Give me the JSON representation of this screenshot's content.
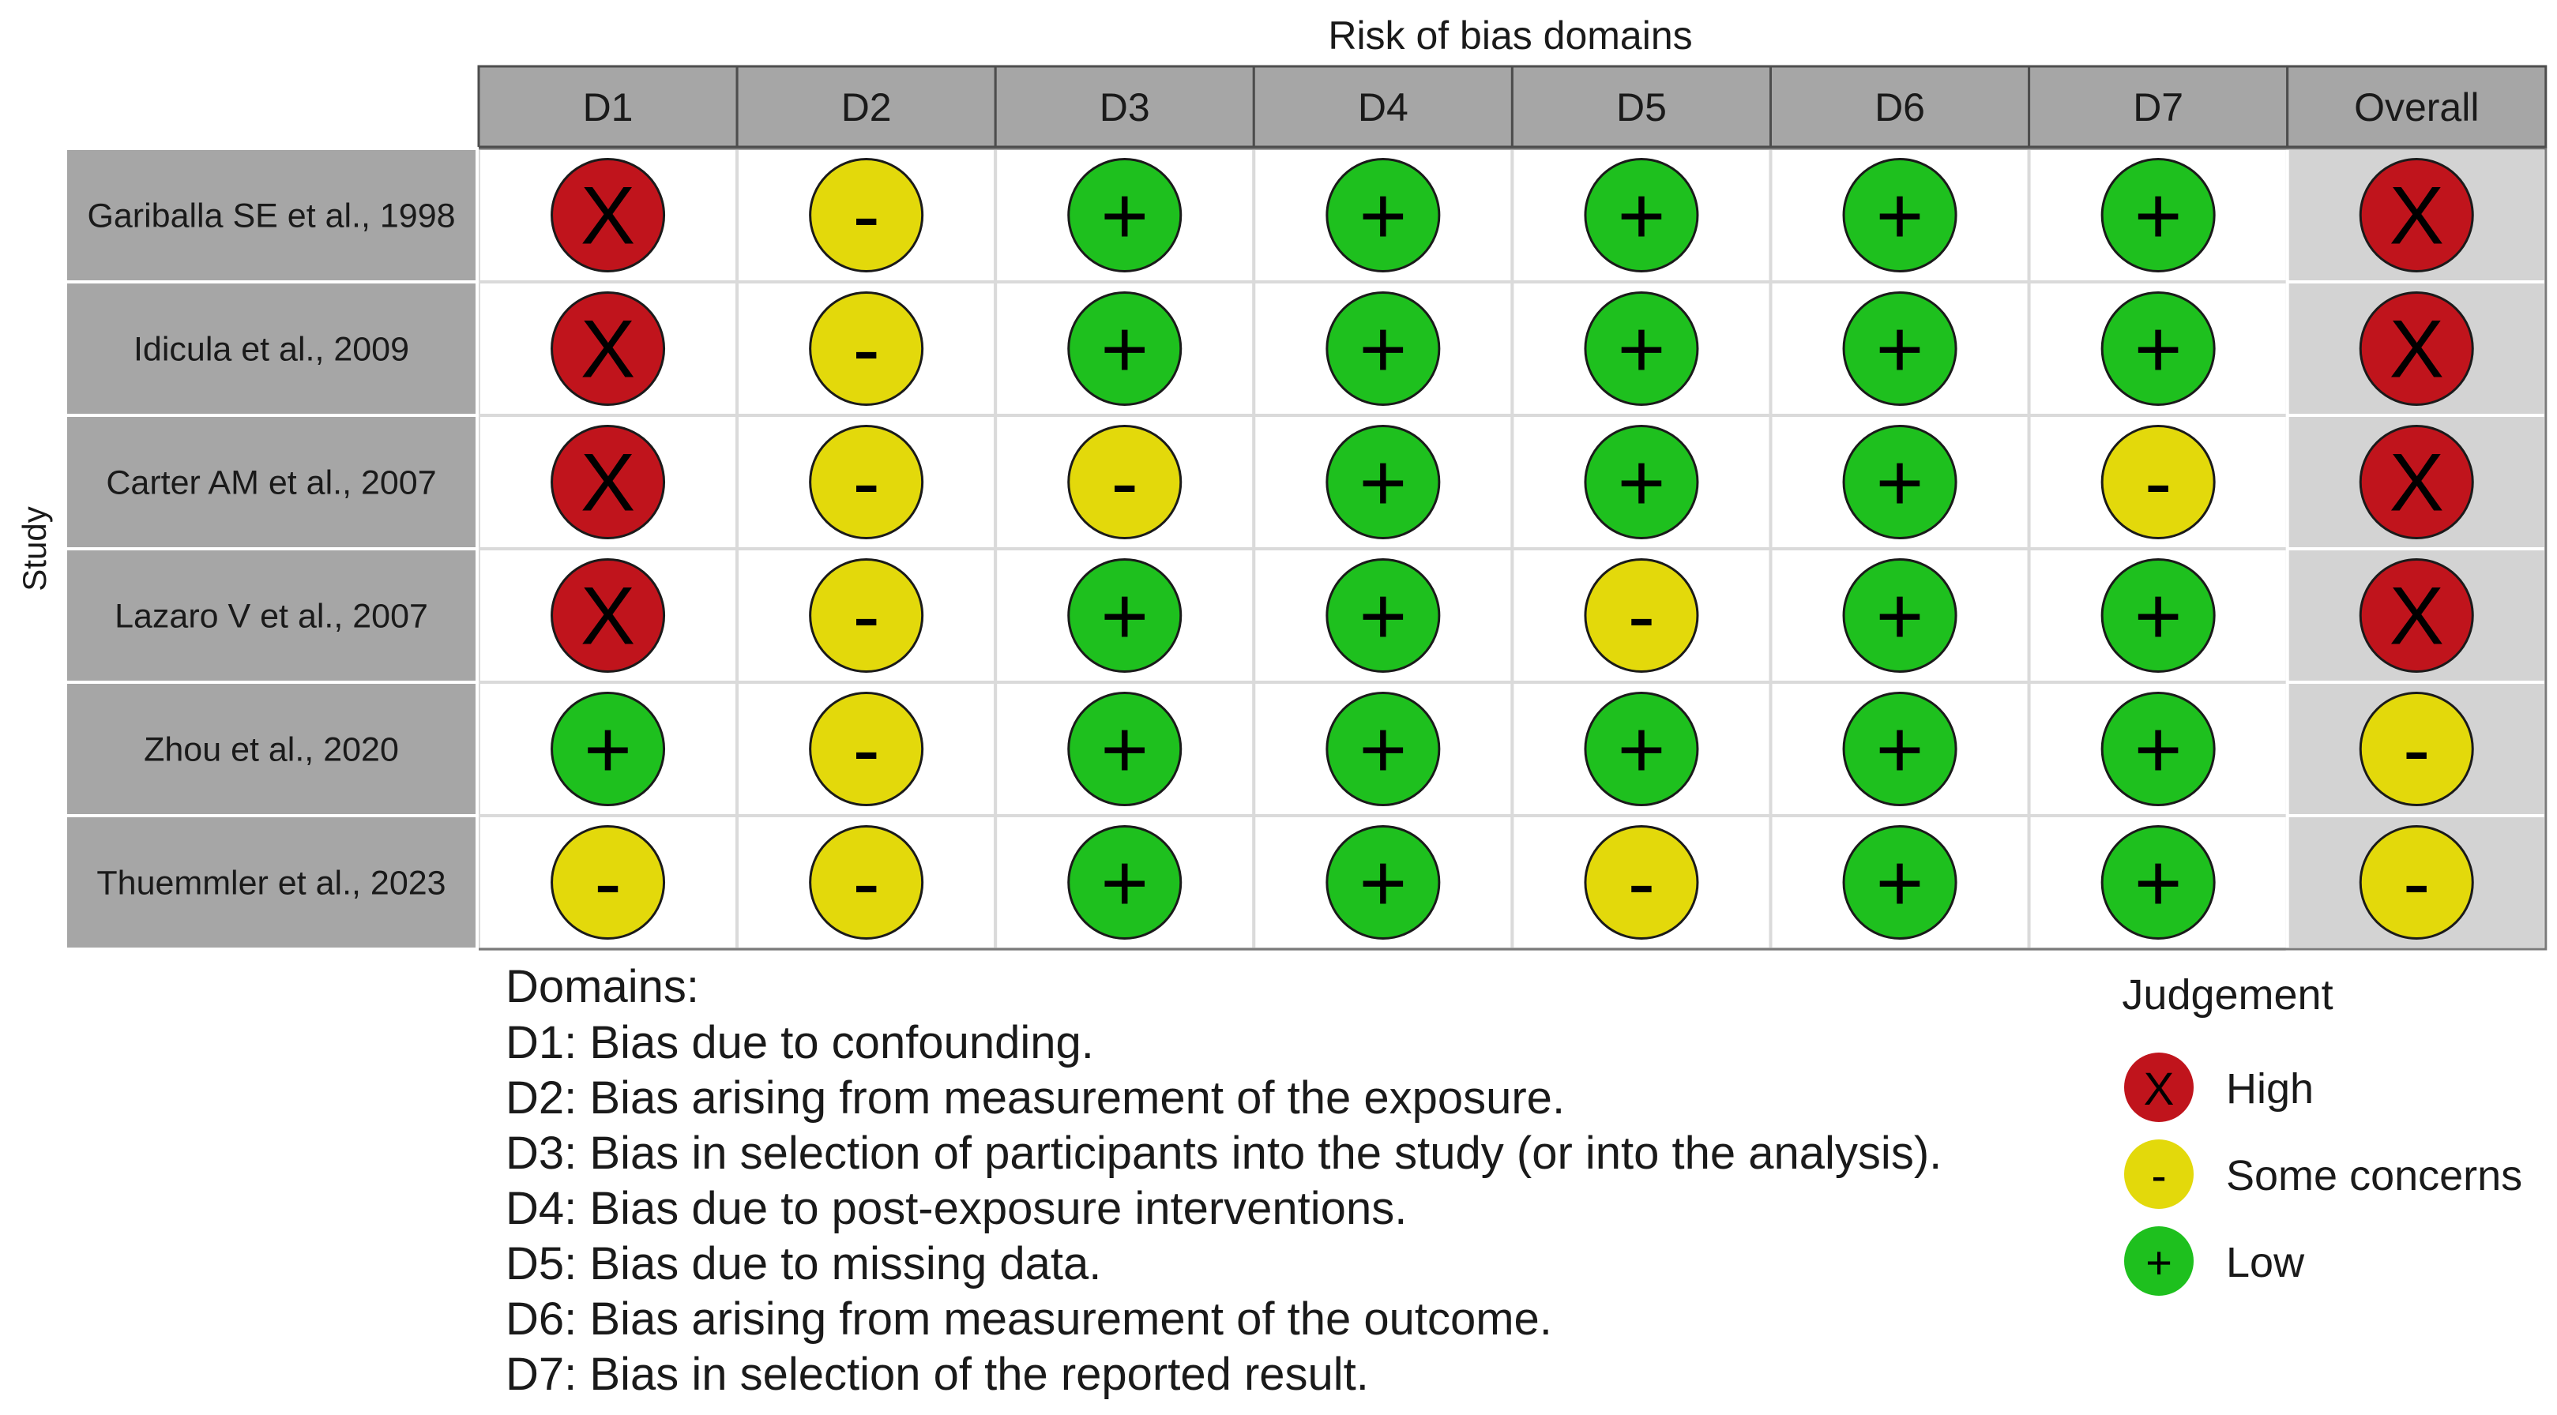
{
  "chart_data": {
    "type": "table",
    "title": "Risk of bias domains",
    "ylabel": "Study",
    "columns": [
      "D1",
      "D2",
      "D3",
      "D4",
      "D5",
      "D6",
      "D7",
      "Overall"
    ],
    "rows": [
      {
        "study": "Gariballa SE et al., 1998",
        "judgements": [
          "High",
          "Some concerns",
          "Low",
          "Low",
          "Low",
          "Low",
          "Low",
          "High"
        ]
      },
      {
        "study": "Idicula et al., 2009",
        "judgements": [
          "High",
          "Some concerns",
          "Low",
          "Low",
          "Low",
          "Low",
          "Low",
          "High"
        ]
      },
      {
        "study": "Carter AM et al., 2007",
        "judgements": [
          "High",
          "Some concerns",
          "Some concerns",
          "Low",
          "Low",
          "Low",
          "Some concerns",
          "High"
        ]
      },
      {
        "study": "Lazaro V et al., 2007",
        "judgements": [
          "High",
          "Some concerns",
          "Low",
          "Low",
          "Some concerns",
          "Low",
          "Low",
          "High"
        ]
      },
      {
        "study": "Zhou et al., 2020",
        "judgements": [
          "Low",
          "Some concerns",
          "Low",
          "Low",
          "Low",
          "Low",
          "Low",
          "Some concerns"
        ]
      },
      {
        "study": "Thuemmler et al., 2023",
        "judgements": [
          "Some concerns",
          "Some concerns",
          "Low",
          "Low",
          "Some concerns",
          "Low",
          "Low",
          "Some concerns"
        ]
      }
    ],
    "symbols": {
      "High": "X",
      "Some concerns": "-",
      "Low": "+"
    },
    "colors": {
      "High": "#c0141c",
      "Some concerns": "#e3d90b",
      "Low": "#1ec01e"
    },
    "domains_title": "Domains:",
    "domain_descriptions": [
      "D1: Bias due to confounding.",
      "D2: Bias arising from measurement of the exposure.",
      "D3: Bias in selection of participants into the study (or into the analysis).",
      "D4: Bias due to post-exposure interventions.",
      "D5: Bias due to missing data.",
      "D6: Bias arising from measurement of the outcome.",
      "D7: Bias in selection of the reported result."
    ],
    "legend_title": "Judgement",
    "legend": [
      "High",
      "Some concerns",
      "Low"
    ]
  }
}
